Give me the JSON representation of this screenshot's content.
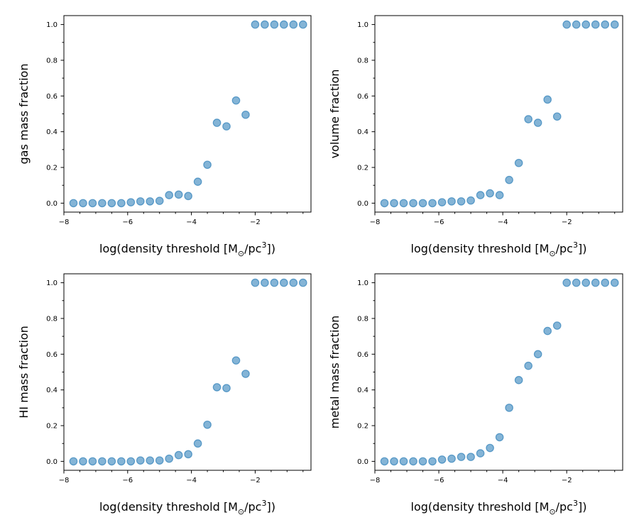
{
  "chart_data": [
    {
      "type": "scatter",
      "xlabel_main": "log(density threshold [M",
      "xlabel_sub": "⊙",
      "xlabel_mid": "/pc",
      "xlabel_sup": "3",
      "xlabel_end": "])",
      "ylabel": "gas mass fraction",
      "xlim": [
        -8.0,
        -0.25
      ],
      "ylim": [
        -0.05,
        1.05
      ],
      "xticks": [
        -8,
        -6,
        -4,
        -2
      ],
      "xtick_labels": [
        "−8",
        "−6",
        "−4",
        "−2"
      ],
      "yticks": [
        0.0,
        0.2,
        0.4,
        0.6,
        0.8,
        1.0
      ],
      "ytick_labels": [
        "0.0",
        "0.2",
        "0.4",
        "0.6",
        "0.8",
        "1.0"
      ],
      "x": [
        -7.7,
        -7.4,
        -7.1,
        -6.8,
        -6.5,
        -6.2,
        -5.9,
        -5.6,
        -5.3,
        -5.0,
        -4.7,
        -4.4,
        -4.1,
        -3.8,
        -3.5,
        -3.2,
        -2.9,
        -2.6,
        -2.3,
        -2.0,
        -1.7,
        -1.4,
        -1.1,
        -0.8,
        -0.5
      ],
      "y": [
        0.0,
        0.0,
        0.0,
        0.0,
        0.0,
        0.0,
        0.005,
        0.01,
        0.01,
        0.013,
        0.045,
        0.048,
        0.04,
        0.12,
        0.215,
        0.45,
        0.43,
        0.575,
        0.495,
        1.0,
        1.0,
        1.0,
        1.0,
        1.0,
        1.0
      ]
    },
    {
      "type": "scatter",
      "xlabel_main": "log(density threshold [M",
      "xlabel_sub": "⊙",
      "xlabel_mid": "/pc",
      "xlabel_sup": "3",
      "xlabel_end": "])",
      "ylabel": "volume fraction",
      "xlim": [
        -8.0,
        -0.25
      ],
      "ylim": [
        -0.05,
        1.05
      ],
      "xticks": [
        -8,
        -6,
        -4,
        -2
      ],
      "xtick_labels": [
        "−8",
        "−6",
        "−4",
        "−2"
      ],
      "yticks": [
        0.0,
        0.2,
        0.4,
        0.6,
        0.8,
        1.0
      ],
      "ytick_labels": [
        "0.0",
        "0.2",
        "0.4",
        "0.6",
        "0.8",
        "1.0"
      ],
      "x": [
        -7.7,
        -7.4,
        -7.1,
        -6.8,
        -6.5,
        -6.2,
        -5.9,
        -5.6,
        -5.3,
        -5.0,
        -4.7,
        -4.4,
        -4.1,
        -3.8,
        -3.5,
        -3.2,
        -2.9,
        -2.6,
        -2.3,
        -2.0,
        -1.7,
        -1.4,
        -1.1,
        -0.8,
        -0.5
      ],
      "y": [
        0.0,
        0.0,
        0.0,
        0.0,
        0.0,
        0.0,
        0.005,
        0.01,
        0.01,
        0.015,
        0.045,
        0.055,
        0.045,
        0.13,
        0.225,
        0.47,
        0.45,
        0.58,
        0.485,
        1.0,
        1.0,
        1.0,
        1.0,
        1.0,
        1.0
      ]
    },
    {
      "type": "scatter",
      "xlabel_main": "log(density threshold [M",
      "xlabel_sub": "⊙",
      "xlabel_mid": "/pc",
      "xlabel_sup": "3",
      "xlabel_end": "])",
      "ylabel": "HI mass fraction",
      "xlim": [
        -8.0,
        -0.25
      ],
      "ylim": [
        -0.05,
        1.05
      ],
      "xticks": [
        -8,
        -6,
        -4,
        -2
      ],
      "xtick_labels": [
        "−8",
        "−6",
        "−4",
        "−2"
      ],
      "yticks": [
        0.0,
        0.2,
        0.4,
        0.6,
        0.8,
        1.0
      ],
      "ytick_labels": [
        "0.0",
        "0.2",
        "0.4",
        "0.6",
        "0.8",
        "1.0"
      ],
      "x": [
        -7.7,
        -7.4,
        -7.1,
        -6.8,
        -6.5,
        -6.2,
        -5.9,
        -5.6,
        -5.3,
        -5.0,
        -4.7,
        -4.4,
        -4.1,
        -3.8,
        -3.5,
        -3.2,
        -2.9,
        -2.6,
        -2.3,
        -2.0,
        -1.7,
        -1.4,
        -1.1,
        -0.8,
        -0.5
      ],
      "y": [
        0.0,
        0.0,
        0.0,
        0.0,
        0.0,
        0.0,
        0.0,
        0.005,
        0.005,
        0.005,
        0.015,
        0.035,
        0.04,
        0.1,
        0.205,
        0.415,
        0.41,
        0.565,
        0.49,
        1.0,
        1.0,
        1.0,
        1.0,
        1.0,
        1.0
      ]
    },
    {
      "type": "scatter",
      "xlabel_main": "log(density threshold [M",
      "xlabel_sub": "⊙",
      "xlabel_mid": "/pc",
      "xlabel_sup": "3",
      "xlabel_end": "])",
      "ylabel": "metal mass fraction",
      "xlim": [
        -8.0,
        -0.25
      ],
      "ylim": [
        -0.05,
        1.05
      ],
      "xticks": [
        -8,
        -6,
        -4,
        -2
      ],
      "xtick_labels": [
        "−8",
        "−6",
        "−4",
        "−2"
      ],
      "yticks": [
        0.0,
        0.2,
        0.4,
        0.6,
        0.8,
        1.0
      ],
      "ytick_labels": [
        "0.0",
        "0.2",
        "0.4",
        "0.6",
        "0.8",
        "1.0"
      ],
      "x": [
        -7.7,
        -7.4,
        -7.1,
        -6.8,
        -6.5,
        -6.2,
        -5.9,
        -5.6,
        -5.3,
        -5.0,
        -4.7,
        -4.4,
        -4.1,
        -3.8,
        -3.5,
        -3.2,
        -2.9,
        -2.6,
        -2.3,
        -2.0,
        -1.7,
        -1.4,
        -1.1,
        -0.8,
        -0.5
      ],
      "y": [
        0.0,
        0.0,
        0.0,
        0.0,
        0.0,
        0.0,
        0.01,
        0.015,
        0.025,
        0.025,
        0.045,
        0.075,
        0.135,
        0.3,
        0.455,
        0.535,
        0.6,
        0.73,
        0.76,
        1.0,
        1.0,
        1.0,
        1.0,
        1.0,
        1.0
      ]
    }
  ],
  "colors": {
    "marker": "#1f77b4"
  }
}
